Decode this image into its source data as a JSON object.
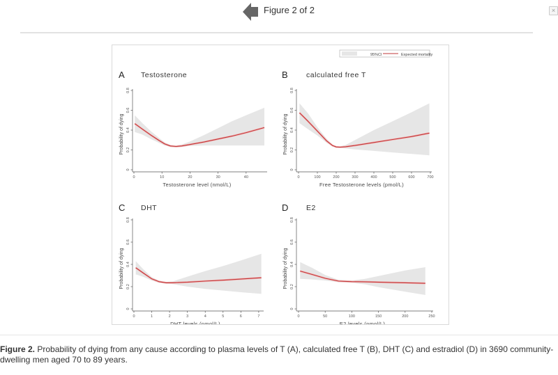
{
  "viewer": {
    "counter": "Figure 2 of 2",
    "prev_icon": "arrow-left-icon",
    "close_icon": "close-icon",
    "close_glyph": "×"
  },
  "legend": {
    "ci_label": "95%CI",
    "line_label": "Expected mortality"
  },
  "colors": {
    "line": "#c0393b",
    "ci_fill": "#e6e6e6",
    "axis": "#555555"
  },
  "caption": {
    "label": "Figure 2.",
    "text": " Probability of dying from any cause according to plasma levels of T (A), calculated free T (B), DHT (C) and estradiol (D) in 3690 community-dwelling men aged 70 to 89 years."
  },
  "chart_data": [
    {
      "type": "line",
      "panel": "A",
      "title": "Testosterone",
      "xlabel": "Testosterone level (nmol/L)",
      "ylabel": "Probability of dying",
      "xlim": [
        0,
        47
      ],
      "ylim": [
        0,
        0.8
      ],
      "xticks": [
        0,
        10,
        20,
        30,
        40
      ],
      "yticks": [
        0,
        0.2,
        0.4,
        0.6,
        0.8
      ],
      "ytick_labels": [
        "0",
        "0.2",
        "0.4",
        "0.6",
        "0.8"
      ],
      "series": [
        {
          "name": "Expected mortality",
          "x": [
            0.3,
            3,
            6,
            9,
            11,
            13,
            15,
            17,
            20,
            25,
            30,
            35,
            40,
            46.5
          ],
          "y": [
            0.465,
            0.41,
            0.35,
            0.295,
            0.26,
            0.24,
            0.235,
            0.24,
            0.255,
            0.28,
            0.31,
            0.34,
            0.375,
            0.425
          ]
        },
        {
          "name": "95%CI upper",
          "x": [
            0.3,
            3,
            6,
            9,
            11,
            13,
            15,
            17,
            20,
            25,
            30,
            35,
            40,
            46.5
          ],
          "y": [
            0.55,
            0.47,
            0.39,
            0.32,
            0.275,
            0.25,
            0.245,
            0.255,
            0.285,
            0.35,
            0.42,
            0.49,
            0.55,
            0.625
          ]
        },
        {
          "name": "95%CI lower",
          "x": [
            0.3,
            3,
            6,
            9,
            11,
            13,
            15,
            17,
            20,
            25,
            30,
            35,
            40,
            46.5
          ],
          "y": [
            0.38,
            0.355,
            0.31,
            0.27,
            0.245,
            0.23,
            0.225,
            0.23,
            0.24,
            0.245,
            0.245,
            0.245,
            0.245,
            0.245
          ]
        }
      ]
    },
    {
      "type": "line",
      "panel": "B",
      "title": "calculated free T",
      "xlabel": "Free Testosterone levels (pmol/L)",
      "ylabel": "Probability of dying",
      "xlim": [
        0,
        700
      ],
      "ylim": [
        0,
        0.8
      ],
      "xticks": [
        0,
        100,
        200,
        300,
        400,
        500,
        600,
        700
      ],
      "yticks": [
        0,
        0.2,
        0.4,
        0.6,
        0.8
      ],
      "ytick_labels": [
        "0",
        "0.2",
        "0.4",
        "0.6",
        "0.8"
      ],
      "series": [
        {
          "name": "Expected mortality",
          "x": [
            5,
            50,
            100,
            150,
            180,
            200,
            220,
            250,
            300,
            400,
            500,
            600,
            695
          ],
          "y": [
            0.575,
            0.49,
            0.39,
            0.29,
            0.245,
            0.23,
            0.228,
            0.232,
            0.245,
            0.275,
            0.305,
            0.335,
            0.37
          ]
        },
        {
          "name": "95%CI upper",
          "x": [
            5,
            50,
            100,
            150,
            180,
            200,
            220,
            250,
            300,
            400,
            500,
            600,
            695
          ],
          "y": [
            0.67,
            0.57,
            0.43,
            0.31,
            0.255,
            0.237,
            0.237,
            0.25,
            0.3,
            0.4,
            0.49,
            0.58,
            0.67
          ]
        },
        {
          "name": "95%CI lower",
          "x": [
            5,
            50,
            100,
            150,
            180,
            200,
            220,
            250,
            300,
            400,
            500,
            600,
            695
          ],
          "y": [
            0.47,
            0.41,
            0.345,
            0.27,
            0.235,
            0.223,
            0.22,
            0.215,
            0.205,
            0.19,
            0.175,
            0.16,
            0.145
          ]
        }
      ]
    },
    {
      "type": "line",
      "panel": "C",
      "title": "DHT",
      "xlabel": "DHT levels (nmol/L)",
      "ylabel": "Probability of dying",
      "xlim": [
        0,
        7.2
      ],
      "ylim": [
        0,
        0.8
      ],
      "xticks": [
        0,
        1,
        2,
        3,
        4,
        5,
        6,
        7
      ],
      "yticks": [
        0,
        0.2,
        0.4,
        0.6,
        0.8
      ],
      "ytick_labels": [
        "0",
        "0.2",
        "0.4",
        "0.6",
        "0.8"
      ],
      "series": [
        {
          "name": "Expected mortality",
          "x": [
            0.1,
            0.5,
            1.0,
            1.4,
            1.8,
            2.2,
            3,
            4,
            5,
            6,
            7.15
          ],
          "y": [
            0.37,
            0.325,
            0.27,
            0.245,
            0.235,
            0.235,
            0.24,
            0.25,
            0.258,
            0.268,
            0.28
          ]
        },
        {
          "name": "95%CI upper",
          "x": [
            0.1,
            0.5,
            1.0,
            1.4,
            1.8,
            2.2,
            3,
            4,
            5,
            6,
            7.15
          ],
          "y": [
            0.43,
            0.36,
            0.285,
            0.255,
            0.243,
            0.248,
            0.29,
            0.34,
            0.385,
            0.435,
            0.495
          ]
        },
        {
          "name": "95%CI lower",
          "x": [
            0.1,
            0.5,
            1.0,
            1.4,
            1.8,
            2.2,
            3,
            4,
            5,
            6,
            7.15
          ],
          "y": [
            0.31,
            0.29,
            0.255,
            0.235,
            0.227,
            0.222,
            0.2,
            0.18,
            0.165,
            0.15,
            0.135
          ]
        }
      ]
    },
    {
      "type": "line",
      "panel": "D",
      "title": "E2",
      "xlabel": "E2 levels (pmol/L)",
      "ylabel": "Probability of dying",
      "xlim": [
        0,
        250
      ],
      "ylim": [
        0,
        0.8
      ],
      "xticks": [
        0,
        50,
        100,
        150,
        200,
        250
      ],
      "yticks": [
        0,
        0.2,
        0.4,
        0.6,
        0.8
      ],
      "ytick_labels": [
        "0",
        "0.2",
        "0.4",
        "0.6",
        "0.8"
      ],
      "series": [
        {
          "name": "Expected mortality",
          "x": [
            3,
            25,
            50,
            75,
            100,
            125,
            150,
            175,
            200,
            238
          ],
          "y": [
            0.34,
            0.31,
            0.275,
            0.25,
            0.245,
            0.243,
            0.24,
            0.237,
            0.235,
            0.23
          ]
        },
        {
          "name": "95%CI upper",
          "x": [
            3,
            25,
            50,
            75,
            100,
            125,
            150,
            175,
            200,
            238
          ],
          "y": [
            0.42,
            0.37,
            0.305,
            0.262,
            0.255,
            0.27,
            0.295,
            0.32,
            0.345,
            0.375
          ]
        },
        {
          "name": "95%CI lower",
          "x": [
            3,
            25,
            50,
            75,
            100,
            125,
            150,
            175,
            200,
            238
          ],
          "y": [
            0.27,
            0.265,
            0.255,
            0.24,
            0.235,
            0.22,
            0.195,
            0.175,
            0.155,
            0.125
          ]
        }
      ]
    }
  ]
}
